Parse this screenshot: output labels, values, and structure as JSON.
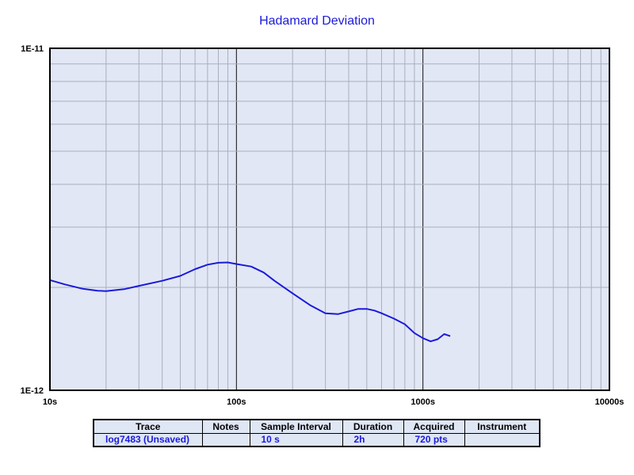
{
  "chart_data": {
    "type": "line",
    "title": "Hadamard Deviation",
    "xscale": "log",
    "yscale": "log",
    "xlim": [
      10,
      10000
    ],
    "ylim": [
      1e-12,
      1e-11
    ],
    "grid": true,
    "x_tick_labels": [
      "10s",
      "100s",
      "1000s",
      "10000s"
    ],
    "y_tick_labels": [
      "1E-12",
      "1E-11"
    ],
    "line_color": "#1a1adc",
    "series": [
      {
        "x": [
          10,
          12,
          15,
          18,
          20,
          25,
          30,
          40,
          50,
          60,
          70,
          80,
          90,
          100,
          120,
          140,
          160,
          200,
          250,
          300,
          350,
          400,
          450,
          500,
          550,
          600,
          700,
          800,
          900,
          1000,
          1100,
          1200,
          1300,
          1400
        ],
        "y": [
          2.1e-12,
          2.04e-12,
          1.98e-12,
          1.955e-12,
          1.95e-12,
          1.975e-12,
          2.02e-12,
          2.09e-12,
          2.16e-12,
          2.26e-12,
          2.33e-12,
          2.36e-12,
          2.365e-12,
          2.34e-12,
          2.3e-12,
          2.21e-12,
          2.09e-12,
          1.92e-12,
          1.77e-12,
          1.68e-12,
          1.67e-12,
          1.7e-12,
          1.73e-12,
          1.73e-12,
          1.71e-12,
          1.68e-12,
          1.62e-12,
          1.56e-12,
          1.47e-12,
          1.42e-12,
          1.39e-12,
          1.41e-12,
          1.46e-12,
          1.44e-12
        ]
      }
    ]
  },
  "table": {
    "headers": [
      "Trace",
      "Notes",
      "Sample Interval",
      "Duration",
      "Acquired",
      "Instrument"
    ],
    "row": [
      "log7483 (Unsaved)",
      "",
      "10 s",
      "2h",
      "720 pts",
      ""
    ]
  }
}
